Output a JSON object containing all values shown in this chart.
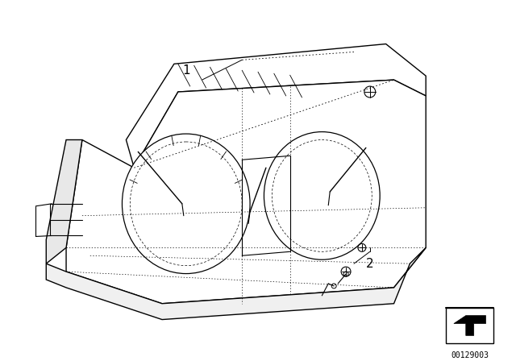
{
  "bg_color": "#ffffff",
  "line_color": "#000000",
  "title": "",
  "part_number": "00129003",
  "label_1": "1",
  "label_2": "2",
  "fig_width": 6.4,
  "fig_height": 4.48,
  "dpi": 100
}
